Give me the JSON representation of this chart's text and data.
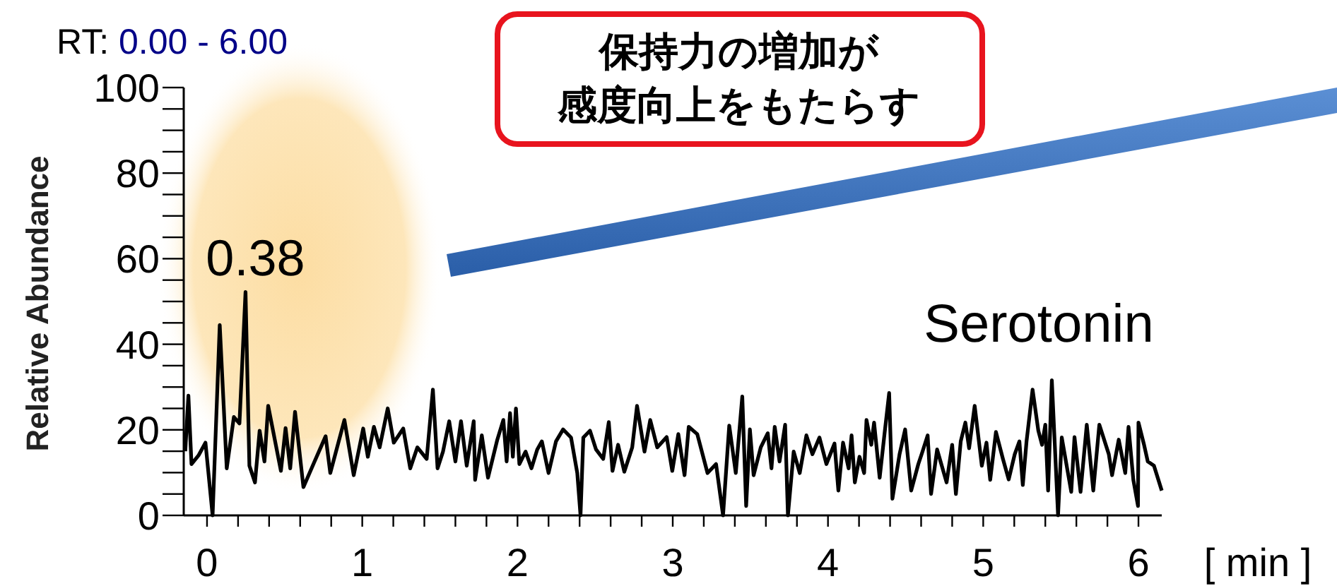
{
  "chart_data": {
    "type": "line",
    "title": "RT: 0.00 - 6.00",
    "xlabel": "[ min ]",
    "ylabel": "Relative Abundance",
    "series": [
      {
        "color": "#000000",
        "x": [
          -0.14,
          -0.12,
          -0.1,
          -0.055,
          -0.01,
          0.036,
          0.082,
          0.127,
          0.173,
          0.209,
          0.248,
          0.273,
          0.309,
          0.339,
          0.37,
          0.394,
          0.476,
          0.506,
          0.536,
          0.567,
          0.621,
          0.688,
          0.764,
          0.794,
          0.885,
          0.945,
          1.006,
          1.036,
          1.075,
          1.112,
          1.164,
          1.203,
          1.264,
          1.309,
          1.355,
          1.415,
          1.455,
          1.485,
          1.52,
          1.56,
          1.6,
          1.636,
          1.673,
          1.718,
          1.727,
          1.77,
          1.81,
          1.87,
          1.909,
          1.93,
          1.952,
          1.97,
          1.99,
          2.012,
          2.052,
          2.09,
          2.127,
          2.157,
          2.2,
          2.248,
          2.294,
          2.345,
          2.385,
          2.406,
          2.424,
          2.467,
          2.506,
          2.552,
          2.588,
          2.612,
          2.648,
          2.688,
          2.739,
          2.77,
          2.818,
          2.855,
          2.9,
          2.961,
          2.997,
          3.036,
          3.076,
          3.103,
          3.158,
          3.224,
          3.279,
          3.324,
          3.364,
          3.406,
          3.448,
          3.473,
          3.497,
          3.521,
          3.567,
          3.612,
          3.636,
          3.657,
          3.688,
          3.724,
          3.742,
          3.779,
          3.818,
          3.861,
          3.9,
          3.945,
          3.99,
          4.042,
          4.067,
          4.097,
          4.133,
          4.152,
          4.173,
          4.203,
          4.233,
          4.248,
          4.279,
          4.297,
          4.333,
          4.364,
          4.394,
          4.415,
          4.461,
          4.497,
          4.536,
          4.582,
          4.606,
          4.642,
          4.664,
          4.703,
          4.764,
          4.8,
          4.824,
          4.855,
          4.885,
          4.909,
          4.945,
          4.991,
          5.021,
          5.045,
          5.082,
          5.127,
          5.164,
          5.203,
          5.233,
          5.255,
          5.279,
          5.318,
          5.355,
          5.379,
          5.4,
          5.418,
          5.442,
          5.482,
          5.506,
          5.567,
          5.588,
          5.627,
          5.667,
          5.709,
          5.748,
          5.809,
          5.83,
          5.873,
          5.915,
          5.936,
          5.967,
          5.997,
          6.0,
          6.036,
          6.06,
          6.1,
          6.15
        ],
        "values": [
          15,
          28,
          12,
          14,
          17,
          0,
          44.5,
          11,
          23,
          21.5,
          52.2,
          11.6,
          7.7,
          19.8,
          12.6,
          25.6,
          10.4,
          20.4,
          11,
          24.2,
          6.6,
          12.2,
          18.5,
          9.9,
          22.3,
          9.4,
          20.3,
          13.7,
          20.7,
          15.9,
          25,
          17,
          20.3,
          11,
          15.9,
          13.2,
          29.4,
          11,
          14.9,
          22,
          12.6,
          22,
          11.6,
          22,
          8.3,
          18.7,
          8.8,
          17.7,
          22.3,
          12.6,
          23.9,
          13.7,
          25,
          12,
          14.9,
          11,
          15.4,
          17.3,
          9.9,
          17.3,
          20.1,
          18.2,
          9.9,
          0,
          18.2,
          19.8,
          15.4,
          13.2,
          21.8,
          10.4,
          16.5,
          10.2,
          15.9,
          25.6,
          14.9,
          22.3,
          15.9,
          18.3,
          10.4,
          19,
          9.4,
          20.7,
          19,
          9.9,
          12,
          0,
          21,
          9.9,
          27.8,
          2.2,
          20.1,
          9.4,
          15.9,
          19.2,
          11,
          20.7,
          12.6,
          21.2,
          0,
          14.9,
          9.9,
          18.7,
          14.3,
          18.2,
          12,
          16.8,
          5.8,
          17,
          11,
          18.7,
          7.7,
          13.7,
          9.9,
          22.3,
          16.5,
          21.7,
          8.8,
          19,
          28.6,
          3.9,
          14.3,
          20.1,
          5.8,
          12,
          14.6,
          18.7,
          5,
          15.4,
          7.7,
          16.5,
          5,
          17.3,
          21.7,
          15.7,
          25.6,
          11.6,
          17,
          8.3,
          19.5,
          13.2,
          8.4,
          14.3,
          17.3,
          7.1,
          17.3,
          29.4,
          19.8,
          16.5,
          21.2,
          5.8,
          31.6,
          0,
          18.2,
          5.5,
          18.3,
          5.5,
          21.2,
          5.8,
          21.2,
          14.3,
          9.4,
          17.7,
          9.9,
          20.7,
          8.3,
          2.2,
          21.7,
          16.5,
          12.6,
          11.6,
          5.8
        ]
      }
    ],
    "xlim": [
      -0.15,
      6.15
    ],
    "ylim": [
      0,
      100
    ],
    "xticks": [
      0,
      {
        "value": 0.2,
        "label": null
      },
      {
        "value": 0.4,
        "label": null
      },
      {
        "value": 0.6,
        "label": null
      },
      {
        "value": 0.8,
        "label": null
      },
      1,
      {
        "value": 1.2,
        "label": null
      },
      {
        "value": 1.4,
        "label": null
      },
      {
        "value": 1.6,
        "label": null
      },
      {
        "value": 1.8,
        "label": null
      },
      2,
      {
        "value": 2.2,
        "label": null
      },
      {
        "value": 2.4,
        "label": null
      },
      {
        "value": 2.6,
        "label": null
      },
      {
        "value": 2.8,
        "label": null
      },
      3,
      {
        "value": 3.2,
        "label": null
      },
      {
        "value": 3.4,
        "label": null
      },
      {
        "value": 3.6,
        "label": null
      },
      {
        "value": 3.8,
        "label": null
      },
      4,
      {
        "value": 4.2,
        "label": null
      },
      {
        "value": 4.4,
        "label": null
      },
      {
        "value": 4.6,
        "label": null
      },
      {
        "value": 4.8,
        "label": null
      },
      5,
      {
        "value": 5.2,
        "label": null
      },
      {
        "value": 5.4,
        "label": null
      },
      {
        "value": 5.6,
        "label": null
      },
      {
        "value": 5.8,
        "label": null
      },
      6
    ],
    "yticks": [
      0,
      {
        "value": 5,
        "label": null
      },
      {
        "value": 10,
        "label": null
      },
      {
        "value": 15,
        "label": null
      },
      20,
      {
        "value": 25,
        "label": null
      },
      {
        "value": 30,
        "label": null
      },
      {
        "value": 35,
        "label": null
      },
      40,
      {
        "value": 45,
        "label": null
      },
      {
        "value": 50,
        "label": null
      },
      {
        "value": 55,
        "label": null
      },
      60,
      {
        "value": 65,
        "label": null
      },
      {
        "value": 70,
        "label": null
      },
      {
        "value": 75,
        "label": null
      },
      80,
      {
        "value": 85,
        "label": null
      },
      {
        "value": 90,
        "label": null
      },
      {
        "value": 95,
        "label": null
      },
      100
    ],
    "annotations": [
      {
        "text": "0.38",
        "x": 0.248,
        "y": 52.2
      },
      "保持力の増加が",
      "感度向上をもたらす",
      "Serotonin"
    ],
    "grid": false,
    "marker": "none",
    "line_style": "solid"
  }
}
